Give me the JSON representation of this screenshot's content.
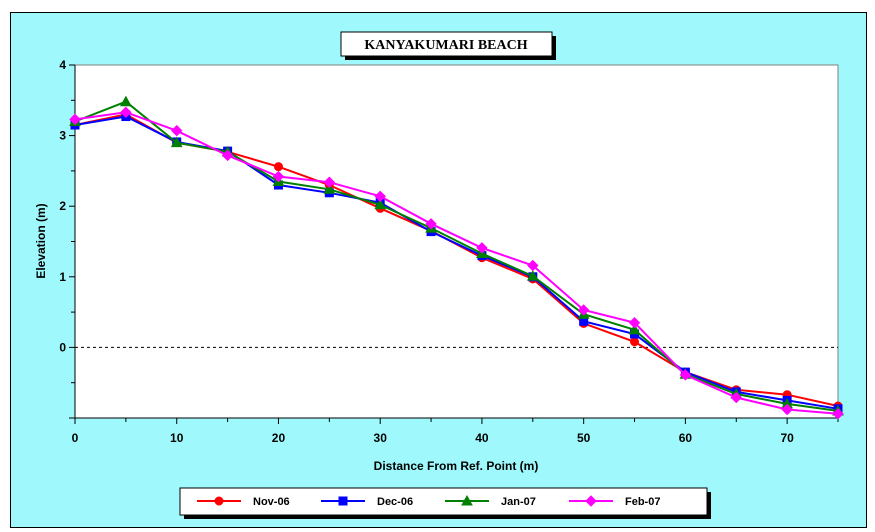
{
  "chart_data": {
    "type": "line",
    "title": "KANYAKUMARI BEACH",
    "xlabel": "Distance From Ref. Point (m)",
    "ylabel": "Elevation (m)",
    "xlim": [
      0,
      75
    ],
    "ylim": [
      -1,
      4
    ],
    "x_ticks": [
      "0",
      "10",
      "20",
      "30",
      "40",
      "50",
      "60",
      "70"
    ],
    "x_tick_values": [
      0,
      10,
      20,
      30,
      40,
      50,
      60,
      70
    ],
    "y_ticks": [
      "0",
      "1",
      "2",
      "3",
      "4"
    ],
    "y_tick_values": [
      0,
      1,
      2,
      3,
      4
    ],
    "zero_line": true,
    "grid": false,
    "legend_position": "bottom",
    "x": [
      0,
      5,
      10,
      15,
      20,
      25,
      30,
      35,
      40,
      45,
      50,
      55,
      60,
      65,
      70,
      75
    ],
    "series": [
      {
        "name": "Nov-06",
        "color": "#ff0000",
        "marker": "circle",
        "values": [
          3.15,
          3.3,
          2.9,
          2.77,
          2.56,
          2.3,
          1.97,
          1.65,
          1.27,
          0.97,
          0.34,
          0.08,
          -0.35,
          -0.6,
          -0.67,
          -0.83
        ]
      },
      {
        "name": "Dec-06",
        "color": "#0000ff",
        "marker": "square",
        "values": [
          3.15,
          3.27,
          2.91,
          2.78,
          2.3,
          2.19,
          2.05,
          1.64,
          1.3,
          1.0,
          0.37,
          0.19,
          -0.35,
          -0.63,
          -0.75,
          -0.87
        ]
      },
      {
        "name": "Jan-07",
        "color": "#008000",
        "marker": "triangle",
        "values": [
          3.2,
          3.48,
          2.9,
          2.77,
          2.35,
          2.24,
          2.02,
          1.69,
          1.33,
          1.01,
          0.47,
          0.25,
          -0.38,
          -0.66,
          -0.8,
          -0.9
        ]
      },
      {
        "name": "Feb-07",
        "color": "#ff00ff",
        "marker": "diamond",
        "values": [
          3.23,
          3.33,
          3.07,
          2.72,
          2.42,
          2.34,
          2.14,
          1.75,
          1.41,
          1.16,
          0.53,
          0.35,
          -0.39,
          -0.71,
          -0.88,
          -0.94
        ]
      }
    ]
  }
}
